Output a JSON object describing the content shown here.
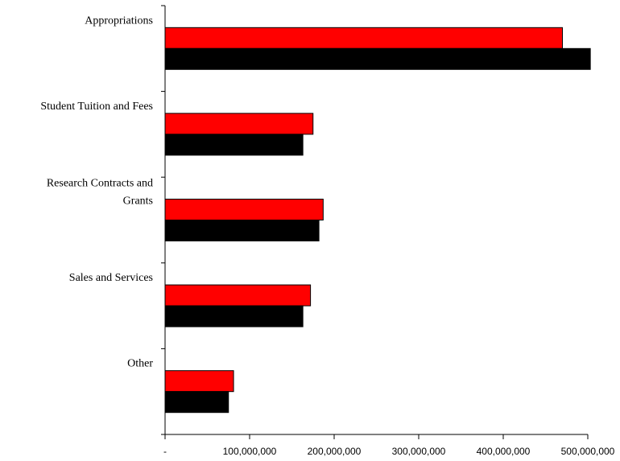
{
  "chart_data": {
    "type": "bar",
    "orientation": "horizontal",
    "categories": [
      [
        "Appropriations"
      ],
      [
        "Student Tuition and Fees"
      ],
      [
        "Research Contracts and",
        "Grants"
      ],
      [
        "Sales and Services"
      ],
      [
        "Other"
      ]
    ],
    "series": [
      {
        "values": [
          470000000,
          175000000,
          187000000,
          172000000,
          81000000
        ],
        "color": "#ff0000"
      },
      {
        "values": [
          503000000,
          163000000,
          182000000,
          163000000,
          75000000
        ],
        "color": "#000000"
      }
    ],
    "xlim": [
      0,
      500000000
    ],
    "x_ticks": [
      0,
      100000000,
      200000000,
      300000000,
      400000000,
      500000000
    ],
    "x_tick_labels": [
      "-",
      "100,000,000",
      "200,000,000",
      "300,000,000",
      "400,000,000",
      "500,000,000"
    ],
    "title": "",
    "xlabel": "",
    "ylabel": "",
    "legend": "none",
    "grid": false
  }
}
